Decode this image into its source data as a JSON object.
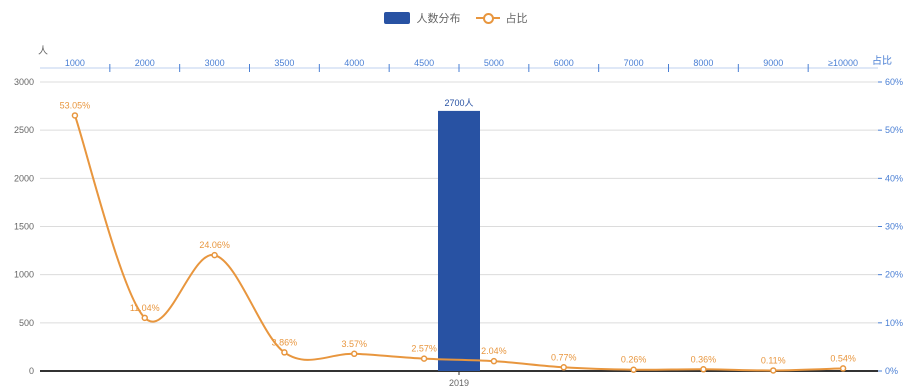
{
  "legend": {
    "bar_label": "人数分布",
    "line_label": "占比",
    "bar_color": "#2852a3",
    "line_color": "#e8963e"
  },
  "chart_data": {
    "type": "bar+line",
    "y_left": {
      "label": "人",
      "ticks": [
        0,
        500,
        1000,
        1500,
        2000,
        2500,
        3000
      ],
      "tick_labels": [
        "0",
        "500",
        "1000",
        "1500",
        "2000",
        "2500",
        "3000"
      ],
      "range": [
        0,
        3000
      ]
    },
    "y_right": {
      "label": "占比",
      "ticks": [
        0,
        10,
        20,
        30,
        40,
        50,
        60
      ],
      "tick_labels": [
        "0%",
        "10%",
        "20%",
        "30%",
        "40%",
        "50%",
        "60%"
      ],
      "range": [
        0,
        60
      ]
    },
    "x_top": {
      "categories": [
        "1000",
        "2000",
        "3000",
        "3500",
        "4000",
        "4500",
        "5000",
        "6000",
        "7000",
        "8000",
        "9000",
        "≥10000"
      ]
    },
    "x_bottom": {
      "categories": [
        "2019"
      ]
    },
    "bar_series": {
      "name": "人数分布",
      "x": "2019",
      "value": 2700,
      "label": "2700人"
    },
    "line_series": {
      "name": "占比",
      "values": [
        53.05,
        11.04,
        24.06,
        3.86,
        3.57,
        2.57,
        2.04,
        0.77,
        0.26,
        0.36,
        0.11,
        0.54
      ],
      "labels": [
        "53.05%",
        "11.04%",
        "24.06%",
        "3.86%",
        "3.57%",
        "2.57%",
        "2.04%",
        "0.77%",
        "0.26%",
        "0.36%",
        "0.11%",
        "0.54%"
      ]
    },
    "grid": true,
    "legend_position": "top-center"
  }
}
